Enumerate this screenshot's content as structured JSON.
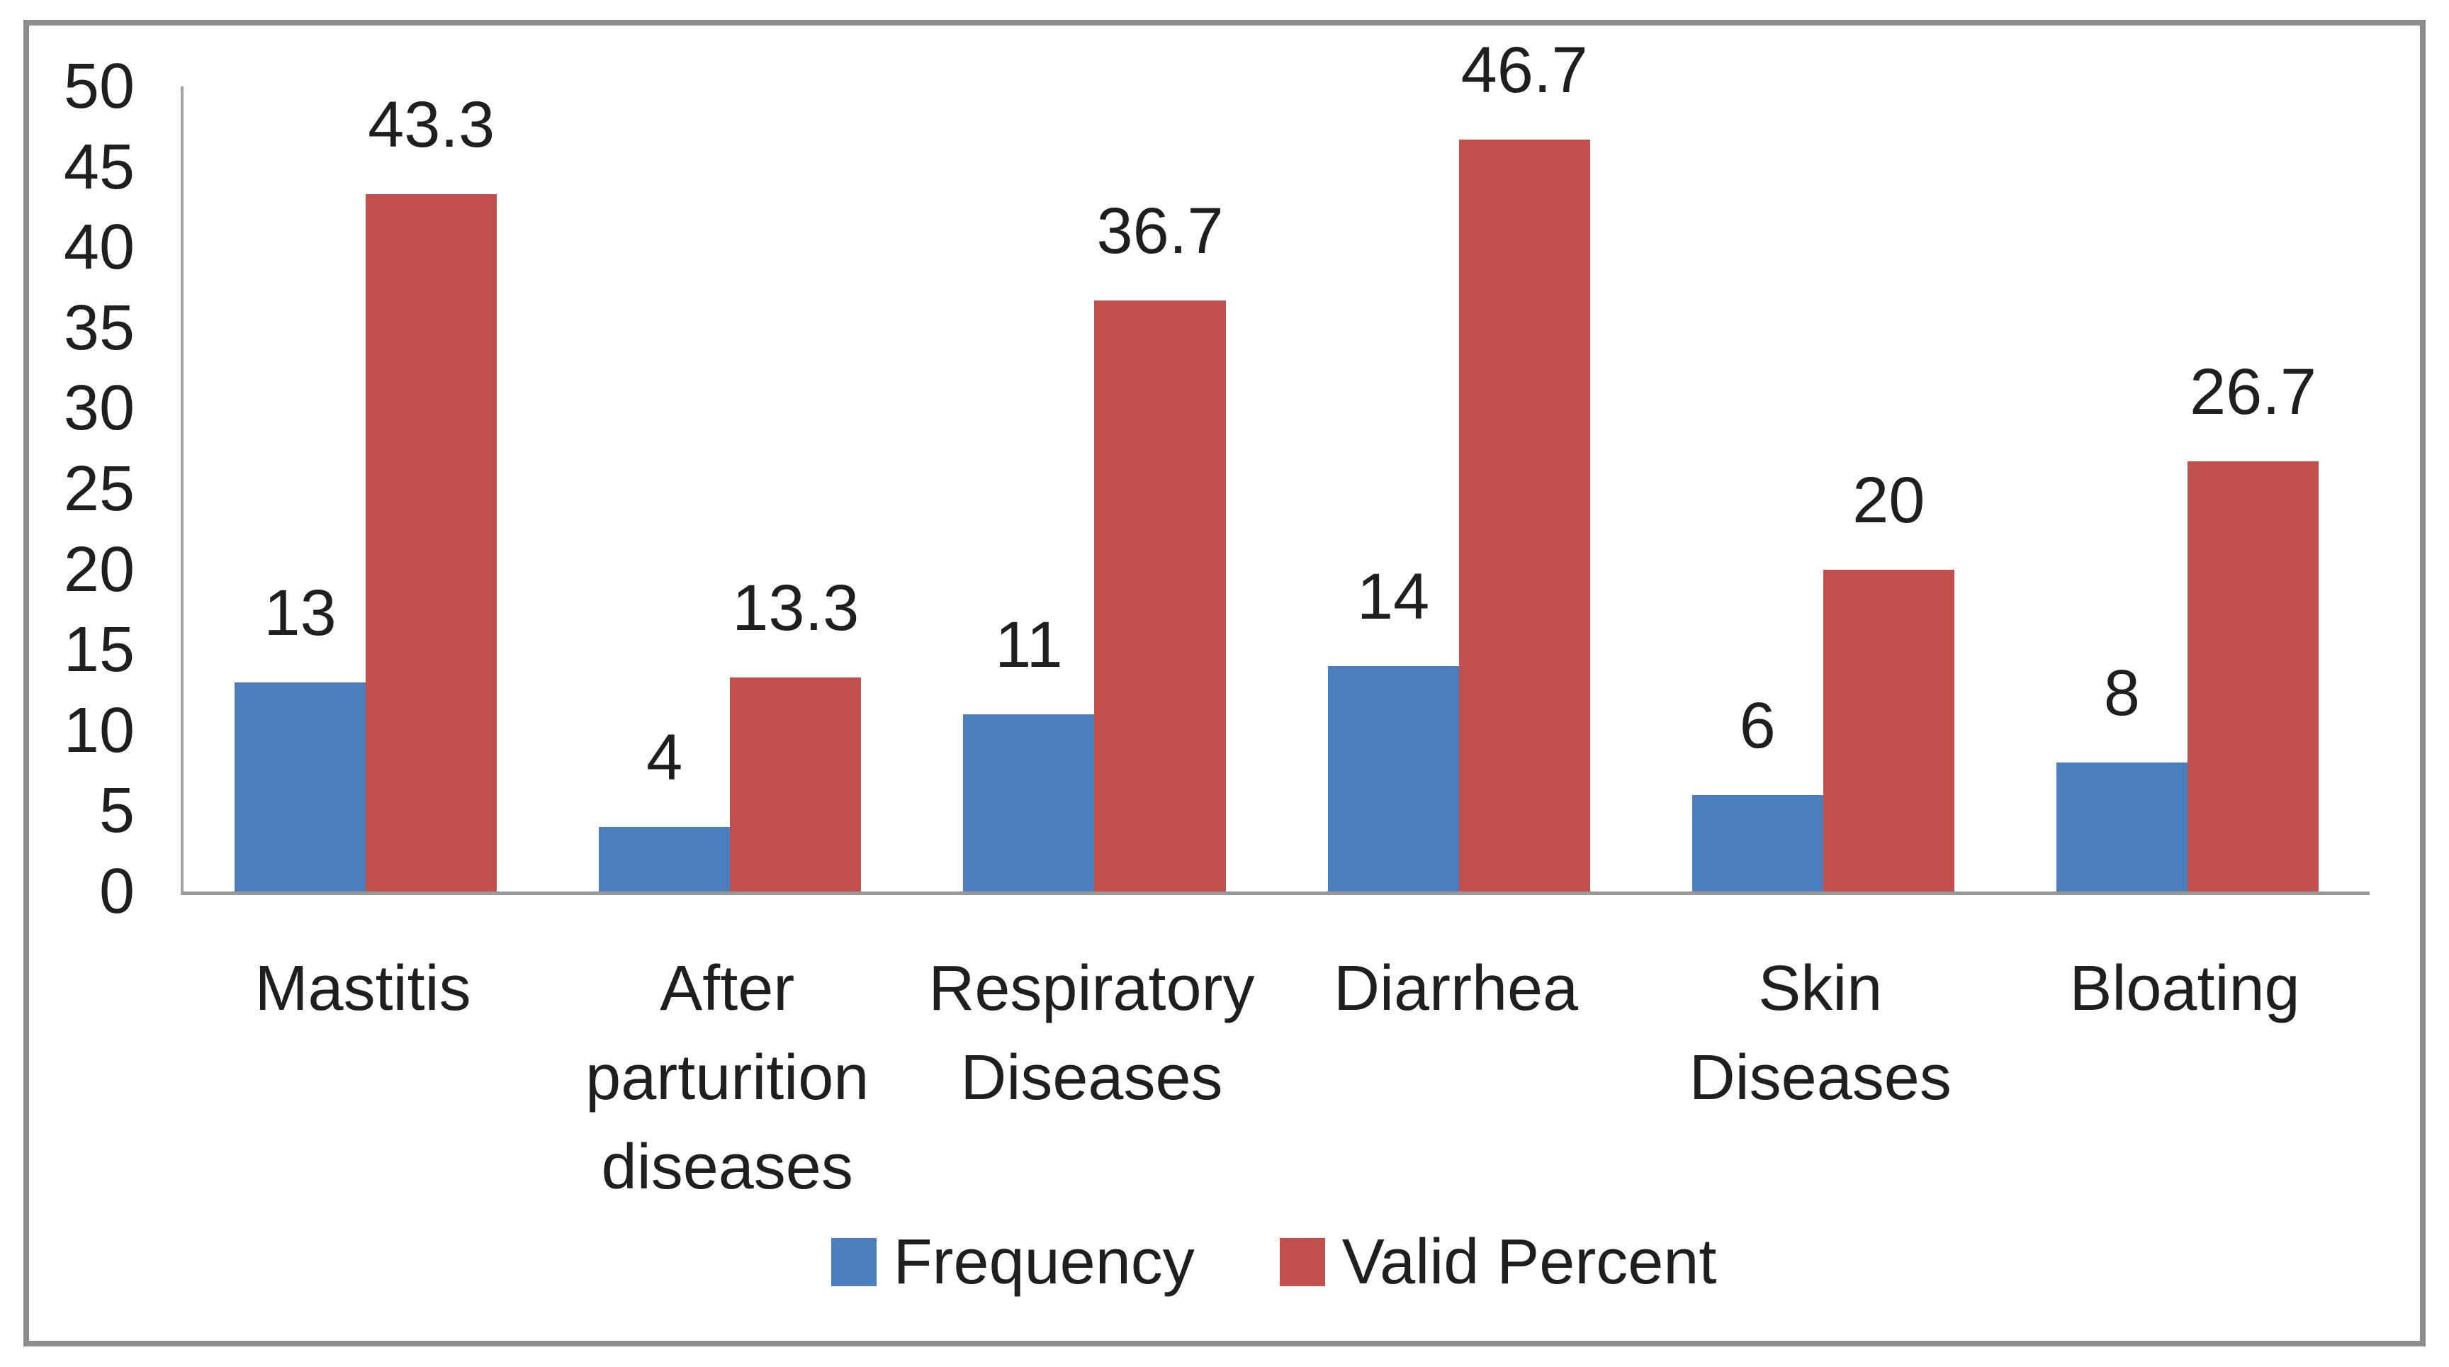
{
  "chart_data": {
    "type": "bar",
    "title": "",
    "xlabel": "",
    "ylabel": "",
    "categories": [
      "Mastitis",
      "After parturition diseases",
      "Respiratory Diseases",
      "Diarrhea",
      "Skin Diseases",
      "Bloating"
    ],
    "series": [
      {
        "name": "Frequency",
        "color": "#4B7EBD",
        "values": [
          13,
          4,
          11,
          14,
          6,
          8
        ],
        "labels": [
          "13",
          "4",
          "11",
          "14",
          "6",
          "8"
        ]
      },
      {
        "name": "Valid Percent",
        "color": "#C1504D",
        "values": [
          43.3,
          13.3,
          36.7,
          46.7,
          20,
          26.7
        ],
        "labels": [
          "43.3",
          "13.3",
          "36.7",
          "46.7",
          "20",
          "26.7"
        ]
      }
    ],
    "ylim": [
      0,
      50
    ],
    "ytick_step": 5,
    "ytick_labels": [
      "0",
      "5",
      "10",
      "15",
      "20",
      "25",
      "30",
      "35",
      "40",
      "45",
      "50"
    ],
    "grid": false,
    "data_labels": true,
    "legend_position": "bottom"
  },
  "style_colors": {
    "frame_border": "#8c8c8c",
    "axis_line": "#a3a3a3",
    "text": "#1f1f1f",
    "background": "#ffffff"
  }
}
